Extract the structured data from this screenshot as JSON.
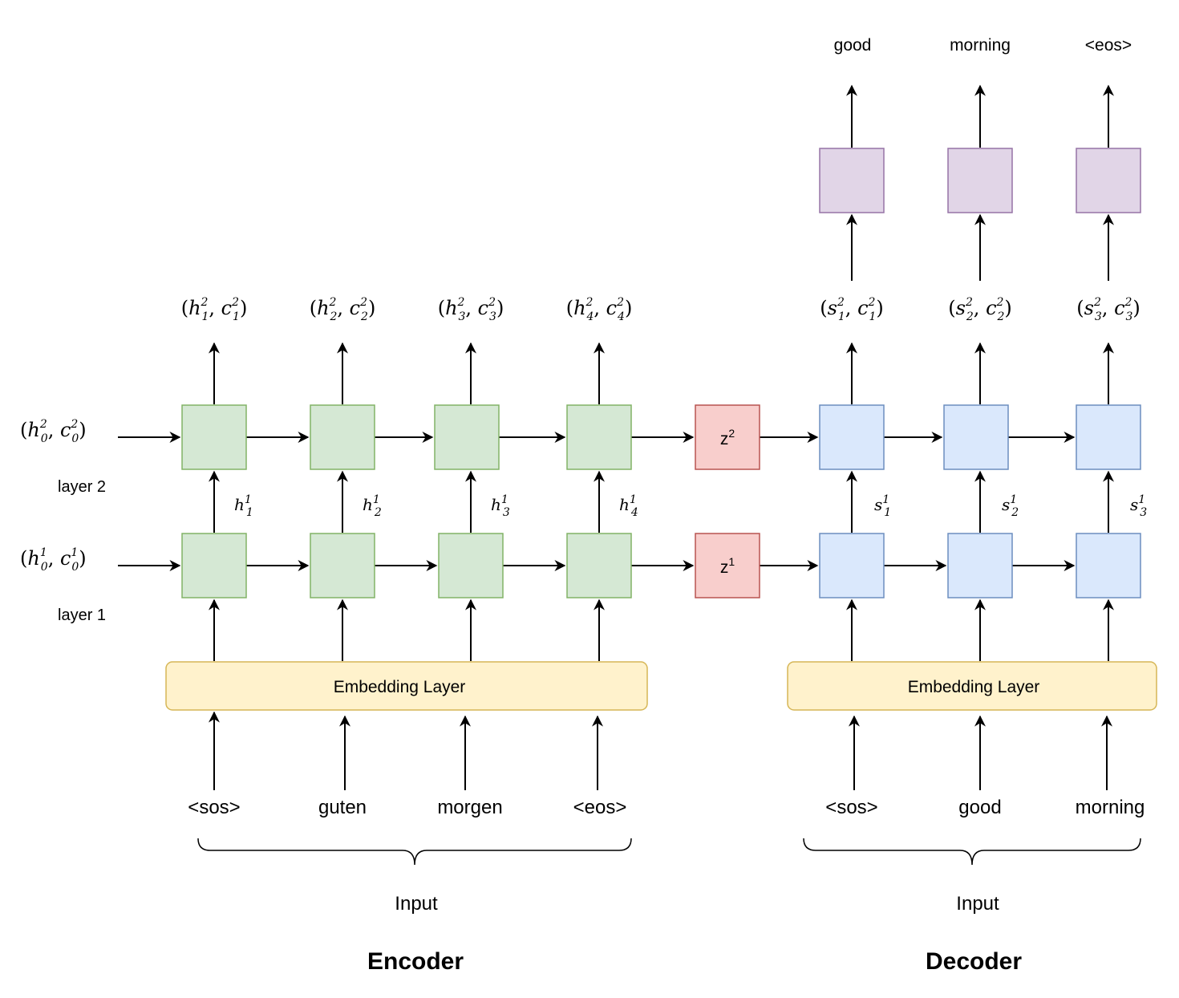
{
  "titles": {
    "encoder": "Encoder",
    "decoder": "Decoder"
  },
  "encoder": {
    "initial_state_layer2": "(h02, c02)",
    "initial_state_layer2_parts": {
      "open": "(",
      "h": "h",
      "h_sup": "2",
      "h_sub": "0",
      "sep": ", ",
      "c": "c",
      "c_sup": "2",
      "c_sub": "0",
      "close": ")"
    },
    "initial_state_layer1_parts": {
      "open": "(",
      "h": "h",
      "h_sup": "1",
      "h_sub": "0",
      "sep": ", ",
      "c": "c",
      "c_sup": "1",
      "c_sub": "0",
      "close": ")"
    },
    "layer2_label": "layer 2",
    "layer1_label": "layer 1",
    "embedding_label": "Embedding Layer",
    "inputs": [
      "<sos>",
      "guten",
      "morgen",
      "<eos>"
    ],
    "input_label": "Input",
    "top_outputs": [
      {
        "open": "(",
        "h": "h",
        "sup": "2",
        "sub": "1",
        "sep": ", ",
        "c": "c",
        "csup": "2",
        "csub": "1",
        "close": ")"
      },
      {
        "open": "(",
        "h": "h",
        "sup": "2",
        "sub": "2",
        "sep": ", ",
        "c": "c",
        "csup": "2",
        "csub": "2",
        "close": ")"
      },
      {
        "open": "(",
        "h": "h",
        "sup": "2",
        "sub": "3",
        "sep": ", ",
        "c": "c",
        "csup": "2",
        "csub": "3",
        "close": ")"
      },
      {
        "open": "(",
        "h": "h",
        "sup": "2",
        "sub": "4",
        "sep": ", ",
        "c": "c",
        "csup": "2",
        "csub": "4",
        "close": ")"
      }
    ],
    "between_labels": [
      {
        "v": "h",
        "sup": "1",
        "sub": "1"
      },
      {
        "v": "h",
        "sup": "1",
        "sub": "2"
      },
      {
        "v": "h",
        "sup": "1",
        "sub": "3"
      },
      {
        "v": "h",
        "sup": "1",
        "sub": "4"
      }
    ]
  },
  "context": {
    "z2": {
      "v": "z",
      "sup": "2"
    },
    "z1": {
      "v": "z",
      "sup": "1"
    }
  },
  "decoder": {
    "embedding_label": "Embedding Layer",
    "inputs": [
      "<sos>",
      "good",
      "morning"
    ],
    "input_label": "Input",
    "outputs": [
      "good",
      "morning",
      "<eos>"
    ],
    "top_outputs": [
      {
        "open": "(",
        "s": "s",
        "sup": "2",
        "sub": "1",
        "sep": ", ",
        "c": "c",
        "csup": "2",
        "csub": "1",
        "close": ")"
      },
      {
        "open": "(",
        "s": "s",
        "sup": "2",
        "sub": "2",
        "sep": ", ",
        "c": "c",
        "csup": "2",
        "csub": "2",
        "close": ")"
      },
      {
        "open": "(",
        "s": "s",
        "sup": "2",
        "sub": "3",
        "sep": ", ",
        "c": "c",
        "csup": "2",
        "csub": "3",
        "close": ")"
      }
    ],
    "between_labels": [
      {
        "v": "s",
        "sup": "1",
        "sub": "1"
      },
      {
        "v": "s",
        "sup": "1",
        "sub": "2"
      },
      {
        "v": "s",
        "sup": "1",
        "sub": "3"
      }
    ]
  },
  "colors": {
    "encoder_cell_fill": "#d5e8d4",
    "encoder_cell_stroke": "#82b366",
    "context_fill": "#f8cecc",
    "context_stroke": "#b85450",
    "decoder_cell_fill": "#dae8fc",
    "decoder_cell_stroke": "#6c8ebf",
    "output_fill": "#e1d5e7",
    "output_stroke": "#9673a6",
    "embedding_fill": "#fff2cc",
    "embedding_stroke": "#d6b656",
    "arrow": "#000000"
  }
}
